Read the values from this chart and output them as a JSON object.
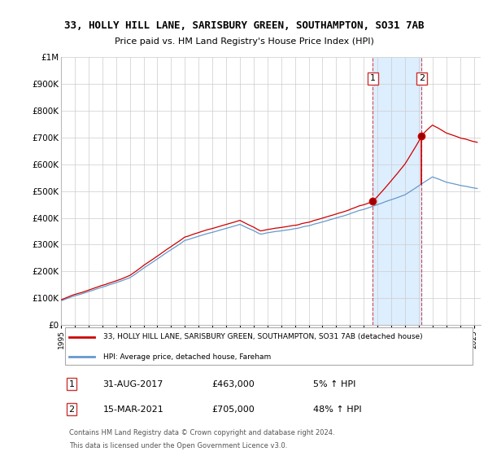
{
  "title1": "33, HOLLY HILL LANE, SARISBURY GREEN, SOUTHAMPTON, SO31 7AB",
  "title2": "Price paid vs. HM Land Registry's House Price Index (HPI)",
  "legend_line1": "33, HOLLY HILL LANE, SARISBURY GREEN, SOUTHAMPTON, SO31 7AB (detached house)",
  "legend_line2": "HPI: Average price, detached house, Fareham",
  "footer1": "Contains HM Land Registry data © Crown copyright and database right 2024.",
  "footer2": "This data is licensed under the Open Government Licence v3.0.",
  "annotation1_label": "1",
  "annotation1_date": "31-AUG-2017",
  "annotation1_price": "£463,000",
  "annotation1_hpi": "5% ↑ HPI",
  "annotation2_label": "2",
  "annotation2_date": "15-MAR-2021",
  "annotation2_price": "£705,000",
  "annotation2_hpi": "48% ↑ HPI",
  "sale1_year": 2017.667,
  "sale1_price": 463000,
  "sale2_year": 2021.208,
  "sale2_price": 705000,
  "ylim": [
    0,
    1000000
  ],
  "xlim_start": 1995.0,
  "xlim_end": 2025.5,
  "red_color": "#cc0000",
  "blue_color": "#6699cc",
  "shade_color": "#ddeeff",
  "background_color": "#ffffff",
  "grid_color": "#cccccc"
}
